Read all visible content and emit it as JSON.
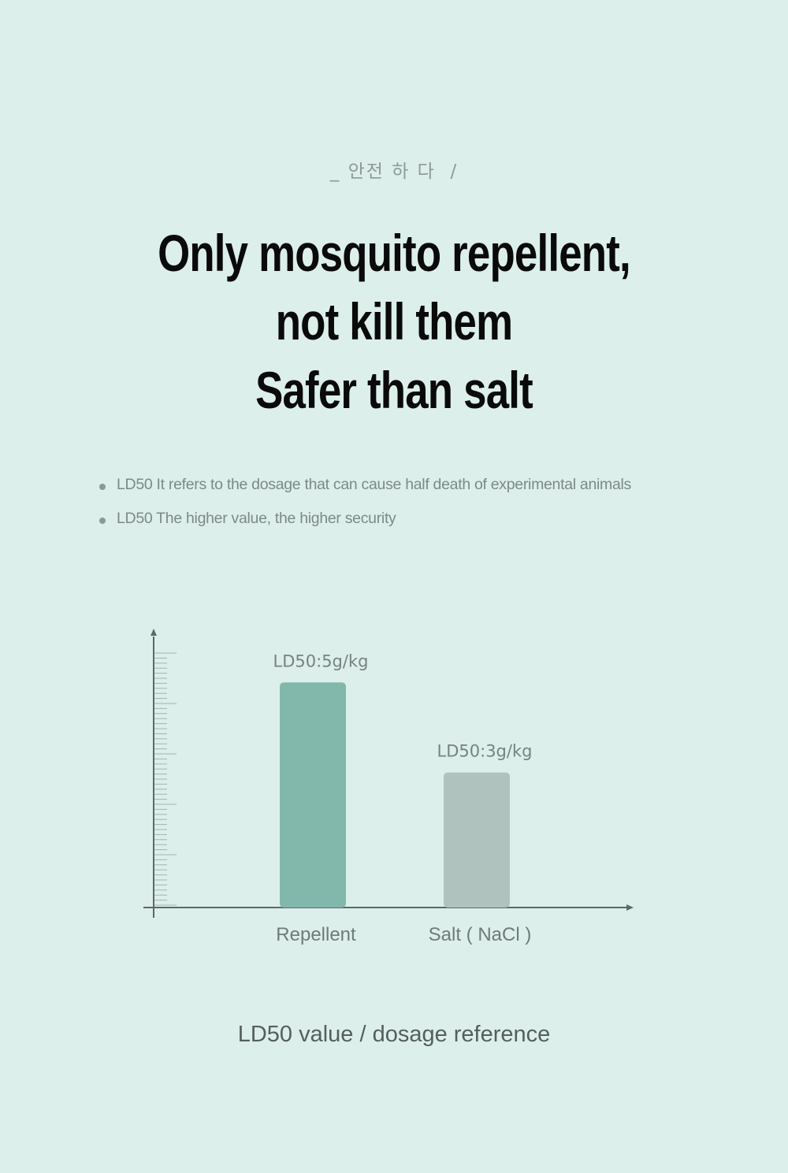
{
  "header": {
    "tagline": "_ 안전 하 다  /",
    "headline": [
      "Only mosquito repellent,",
      "not kill them",
      "Safer than salt"
    ]
  },
  "notes": [
    "LD50 It refers to the dosage that can cause half death of experimental animals",
    "LD50 The higher value, the higher security"
  ],
  "chart_data": {
    "type": "bar",
    "categories": [
      "Repellent",
      "Salt ( NaCl )"
    ],
    "values": [
      5,
      3
    ],
    "unit": "g/kg",
    "data_labels": [
      "LD50:5g/kg",
      "LD50:3g/kg"
    ],
    "ylim": [
      0,
      5.6
    ],
    "axis_ticks": "minor tick marks on y-axis, no numeric labels",
    "colors": [
      "#82b8ab",
      "#b0c2bd"
    ],
    "title": "",
    "xlabel": "",
    "ylabel": ""
  },
  "caption": "LD50 value / dosage reference",
  "colors": {
    "background": "#dcefea",
    "axis": "#5f6866",
    "label_text": "#7a8683"
  }
}
